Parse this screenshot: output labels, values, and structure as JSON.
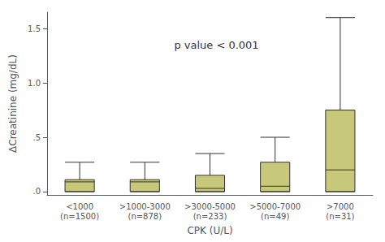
{
  "chart_data": {
    "type": "box",
    "categories": [
      "<1000\n(n=1500)",
      ">1000-3000\n(n=878)",
      ">3000-5000\n(n=233)",
      ">5000-7000\n(n=49)",
      ">7000\n(n=31)"
    ],
    "boxes": [
      {
        "whislo": 0.0,
        "q1": 0.0,
        "median": 0.09,
        "q3": 0.11,
        "whishi": 0.27
      },
      {
        "whislo": 0.0,
        "q1": 0.0,
        "median": 0.09,
        "q3": 0.11,
        "whishi": 0.27
      },
      {
        "whislo": 0.0,
        "q1": 0.0,
        "median": 0.03,
        "q3": 0.15,
        "whishi": 0.35
      },
      {
        "whislo": 0.0,
        "q1": 0.0,
        "median": 0.05,
        "q3": 0.27,
        "whishi": 0.5
      },
      {
        "whislo": 0.0,
        "q1": 0.0,
        "median": 0.2,
        "q3": 0.75,
        "whishi": 1.6
      }
    ],
    "color": "#c8c87a",
    "xlabel": "CPK (U/L)",
    "ylabel": "ΔCreatinine (mg/dL)",
    "annotation": "p value < 0.001",
    "ylim": [
      -0.03,
      1.65
    ],
    "yticks": [
      {
        "value": 0.0,
        "label": ".0"
      },
      {
        "value": 0.5,
        "label": ".5"
      },
      {
        "value": 1.0,
        "label": "1.0"
      },
      1.5
    ],
    "grid": false
  }
}
